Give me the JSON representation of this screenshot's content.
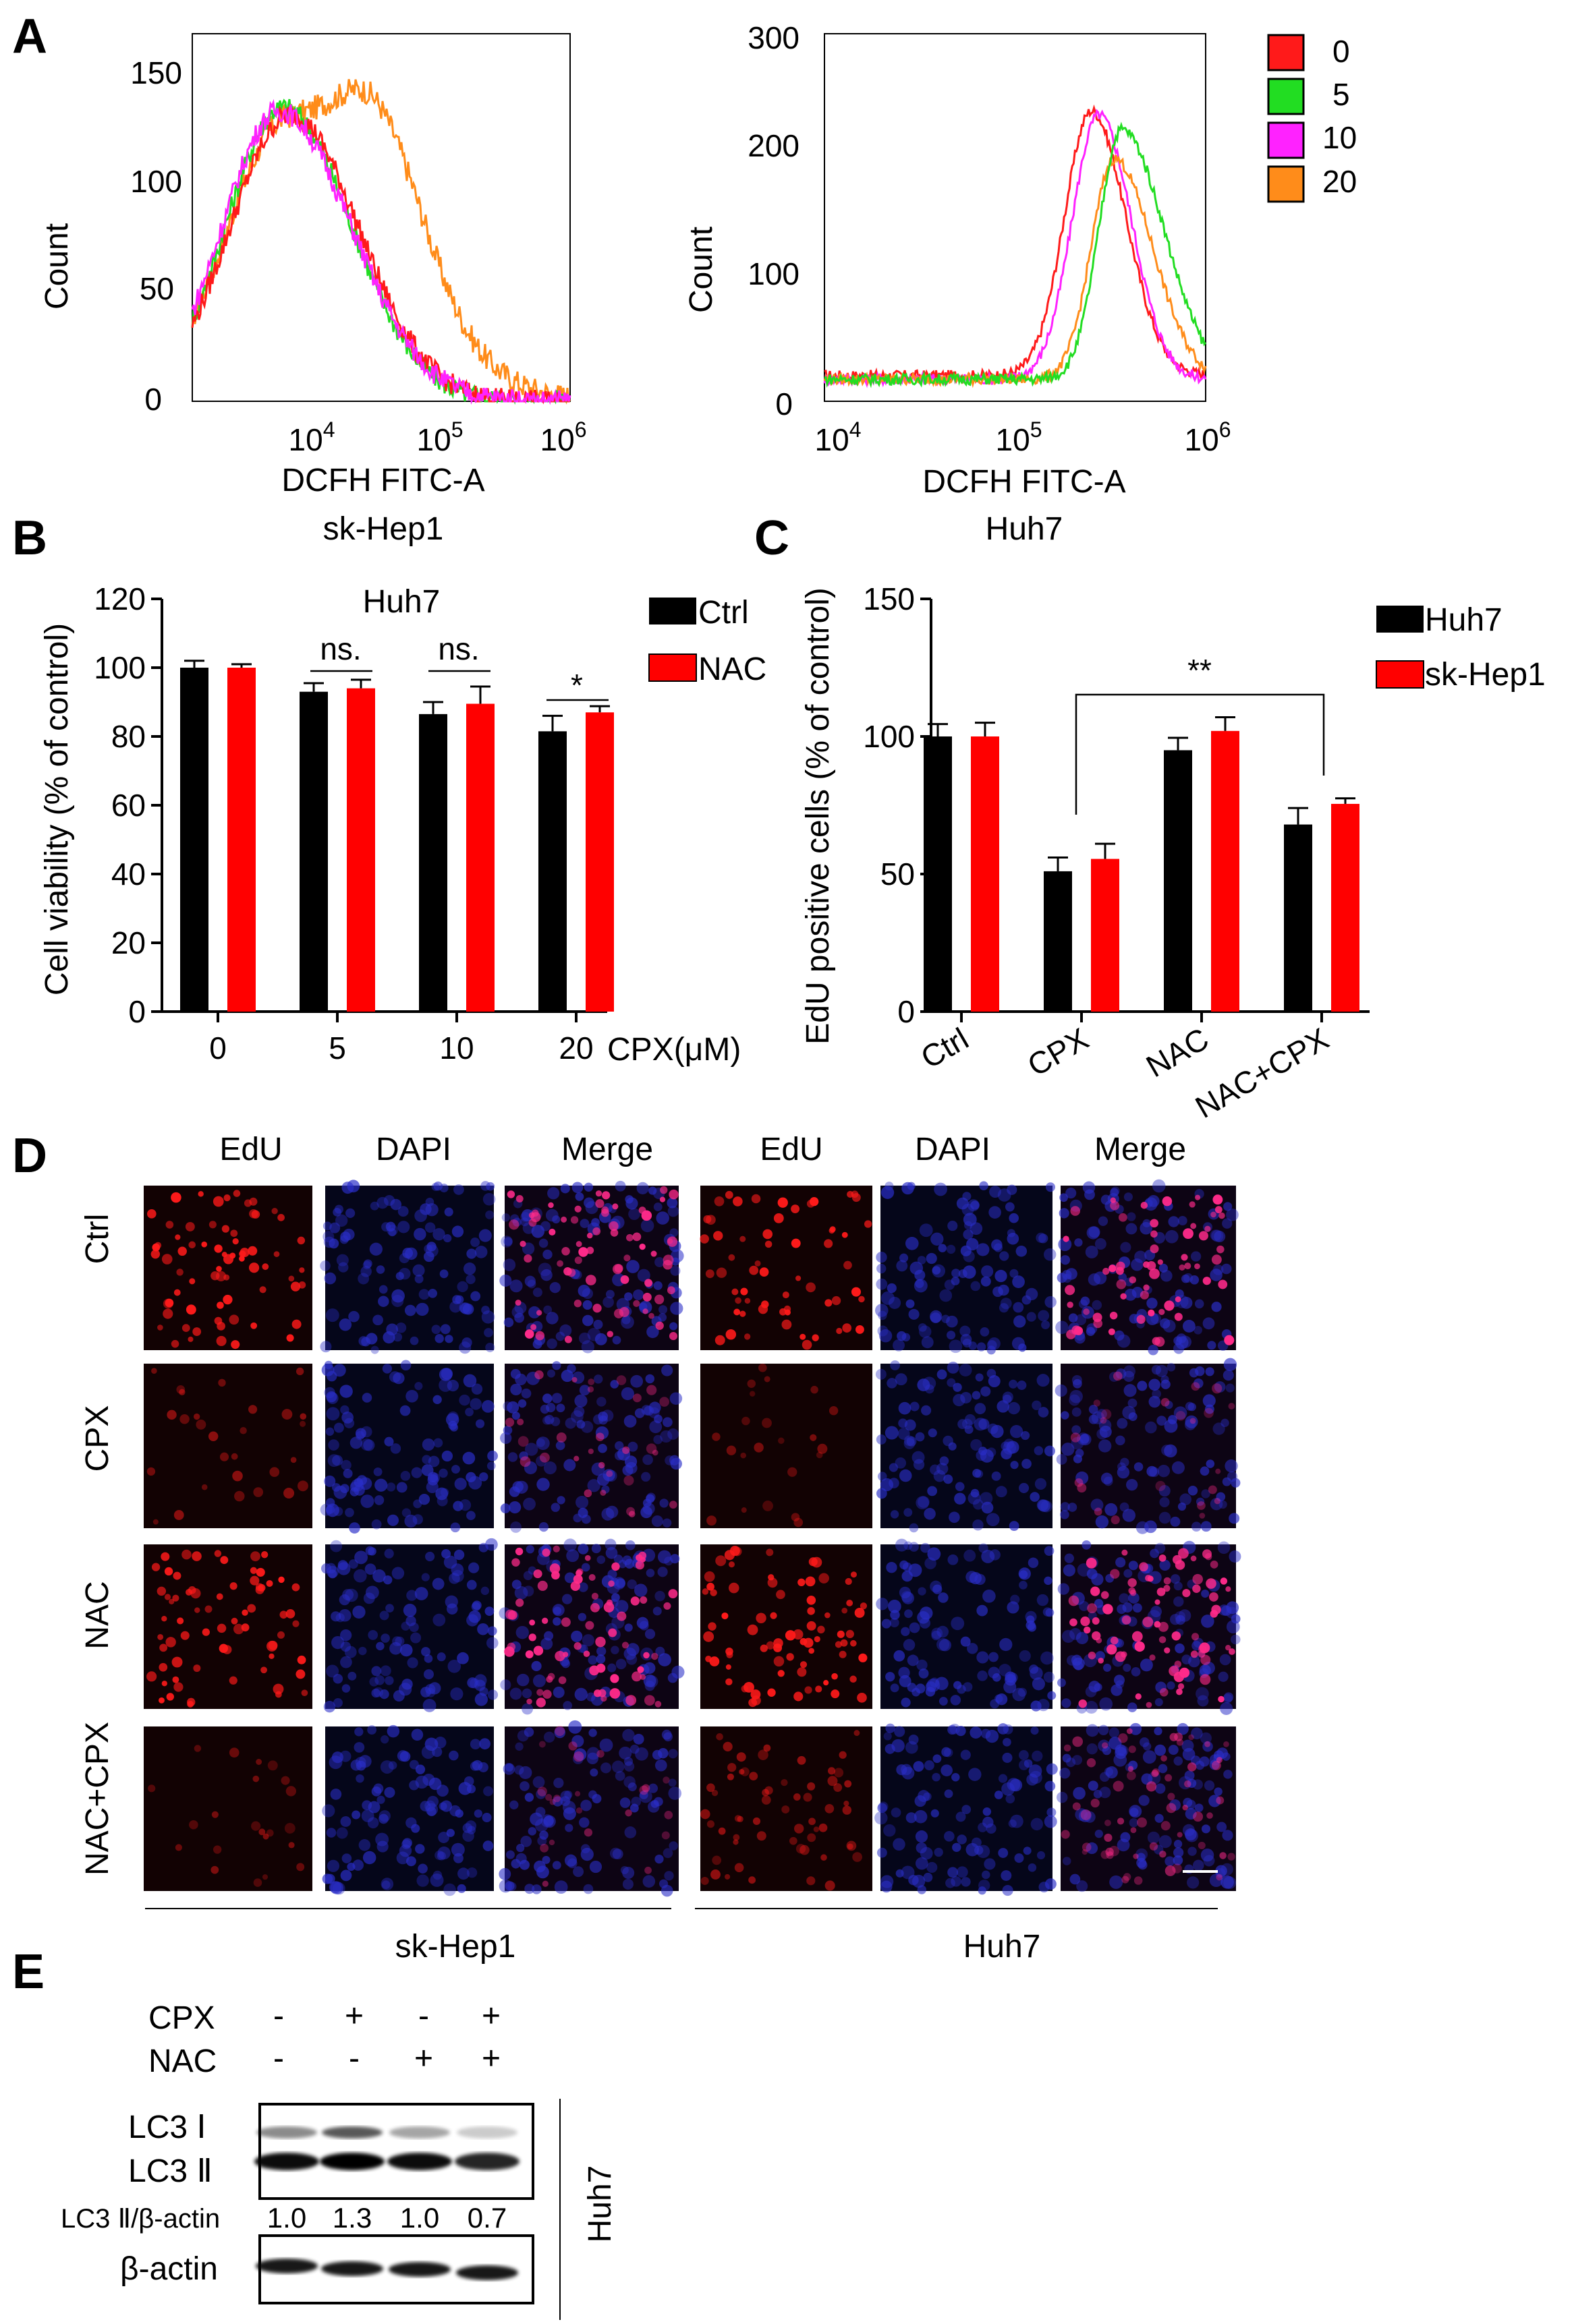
{
  "panel_labels": [
    "A",
    "B",
    "C",
    "D",
    "E"
  ],
  "panelA": {
    "legend": [
      {
        "label": "0",
        "color": "#ff1a1a"
      },
      {
        "label": "5",
        "color": "#22dd22"
      },
      {
        "label": "10",
        "color": "#ff22ff"
      },
      {
        "label": "20",
        "color": "#ff8c1a"
      }
    ],
    "left": {
      "ylabel": "Count",
      "xlabel": "DCFH FITC-A",
      "cell": "sk-Hep1",
      "yticks": [
        "0",
        "50",
        "100",
        "150"
      ],
      "xticks": [
        {
          "base": "10",
          "exp": "4"
        },
        {
          "base": "10",
          "exp": "5"
        },
        {
          "base": "10",
          "exp": "6"
        }
      ]
    },
    "right": {
      "ylabel": "Count",
      "xlabel": "DCFH FITC-A",
      "cell": "Huh7",
      "yticks": [
        "0",
        "100",
        "200",
        "300"
      ],
      "xticks": [
        {
          "base": "10",
          "exp": "4"
        },
        {
          "base": "10",
          "exp": "5"
        },
        {
          "base": "10",
          "exp": "6"
        }
      ]
    }
  },
  "chart_data": [
    {
      "type": "bar",
      "panel": "B",
      "title": "Huh7",
      "ylabel": "Cell viability (% of control)",
      "xlabel": "CPX(μM)",
      "categories": [
        "0",
        "5",
        "10",
        "20"
      ],
      "ylim": [
        0,
        120
      ],
      "yticks": [
        0,
        20,
        40,
        60,
        80,
        100,
        120
      ],
      "series": [
        {
          "name": "Ctrl",
          "color": "#000000",
          "values": [
            100,
            93,
            86.5,
            81.5
          ],
          "errors": [
            2,
            2.5,
            3.5,
            4.5
          ]
        },
        {
          "name": "NAC",
          "color": "#ff0000",
          "values": [
            100,
            94,
            89.5,
            87
          ],
          "errors": [
            1,
            2.5,
            5,
            1.8
          ]
        }
      ],
      "annotations": [
        "ns.",
        "ns.",
        "*"
      ],
      "legend": "top-right"
    },
    {
      "type": "bar",
      "panel": "C",
      "ylabel": "EdU positive cells (% of control)",
      "categories": [
        "Ctrl",
        "CPX",
        "NAC",
        "NAC+CPX"
      ],
      "ylim": [
        0,
        150
      ],
      "yticks": [
        0,
        50,
        100,
        150
      ],
      "series": [
        {
          "name": "Huh7",
          "color": "#000000",
          "values": [
            100,
            51,
            95,
            68
          ],
          "errors": [
            4.5,
            5,
            4.5,
            6
          ]
        },
        {
          "name": "sk-Hep1",
          "color": "#ff0000",
          "values": [
            100,
            55.5,
            102,
            75.5
          ],
          "errors": [
            5,
            5.5,
            5,
            2
          ]
        }
      ],
      "annotations": [
        "**"
      ],
      "legend": "top-right"
    }
  ],
  "panelD": {
    "columns": [
      "EdU",
      "DAPI",
      "Merge",
      "EdU",
      "DAPI",
      "Merge"
    ],
    "rows": [
      "Ctrl",
      "CPX",
      "NAC",
      "NAC+CPX"
    ],
    "groups": [
      "sk-Hep1",
      "Huh7"
    ]
  },
  "panelE": {
    "cpx": [
      "-",
      "+",
      "-",
      "+"
    ],
    "nac": [
      "-",
      "-",
      "+",
      "+"
    ],
    "cpx_label": "CPX",
    "nac_label": "NAC",
    "lc3i": "LC3 Ⅰ",
    "lc3ii": "LC3 Ⅱ",
    "ratio_label": "LC3 Ⅱ/β-actin",
    "ratios": [
      "1.0",
      "1.3",
      "1.0",
      "0.7"
    ],
    "actin": "β-actin",
    "cell": "Huh7"
  }
}
